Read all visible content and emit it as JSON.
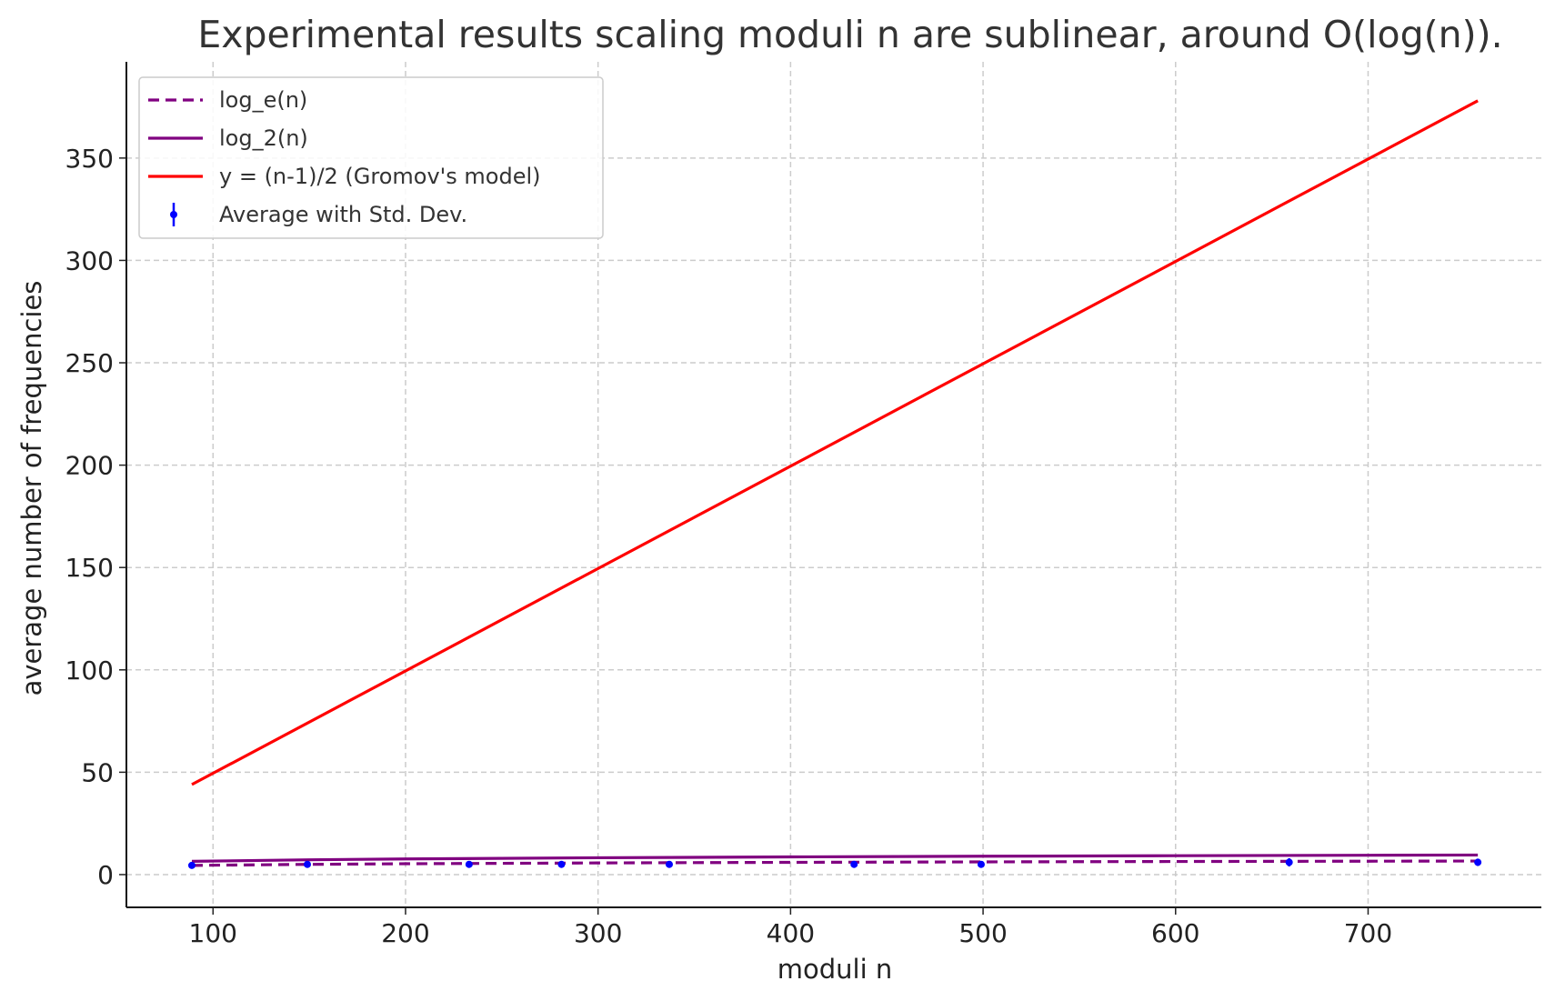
{
  "chart_data": {
    "type": "line",
    "title": "Experimental results scaling moduli n are sublinear, around O(log(n)).",
    "xlabel": "moduli n",
    "ylabel": "average number of frequencies",
    "xlim": [
      55,
      790
    ],
    "ylim": [
      -16,
      397
    ],
    "xticks": [
      100,
      200,
      300,
      400,
      500,
      600,
      700
    ],
    "yticks": [
      0,
      50,
      100,
      150,
      200,
      250,
      300,
      350
    ],
    "grid": true,
    "legend_position": "top-left",
    "colors": {
      "log_e": "#800080",
      "log_2": "#800080",
      "gromov": "#ff0000",
      "average": "#0000ff",
      "grid": "#cccccc"
    },
    "series": [
      {
        "name": "log_e(n)",
        "kind": "line",
        "style": "dashed",
        "x": [
          89,
          150,
          200,
          300,
          400,
          500,
          600,
          700,
          757
        ],
        "y": [
          4.49,
          5.01,
          5.3,
          5.7,
          5.99,
          6.21,
          6.4,
          6.55,
          6.63
        ]
      },
      {
        "name": "log_2(n)",
        "kind": "line",
        "style": "solid",
        "x": [
          89,
          150,
          200,
          300,
          400,
          500,
          600,
          700,
          757
        ],
        "y": [
          6.48,
          7.23,
          7.64,
          8.23,
          8.64,
          8.97,
          9.23,
          9.45,
          9.56
        ]
      },
      {
        "name": "y = (n-1)/2 (Gromov's model)",
        "kind": "line",
        "style": "solid",
        "x": [
          89,
          757
        ],
        "y": [
          44,
          378
        ]
      },
      {
        "name": "Average with Std. Dev.",
        "kind": "errorbar",
        "x": [
          89,
          149,
          233,
          281,
          337,
          433,
          499,
          659,
          757
        ],
        "y": [
          4.5,
          5.0,
          5.0,
          5.0,
          5.0,
          5.0,
          5.0,
          6.0,
          6.0
        ],
        "std": [
          0.6,
          0.7,
          0.6,
          0.7,
          0.6,
          0.7,
          1.3,
          2.0,
          1.8
        ]
      }
    ]
  }
}
